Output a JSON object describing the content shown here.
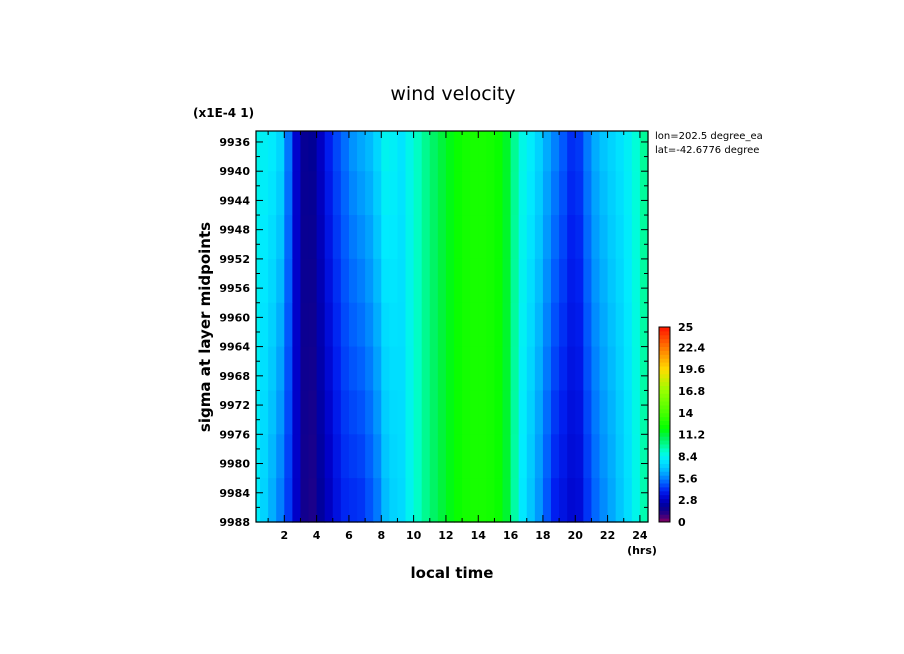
{
  "chart_data": {
    "type": "heatmap",
    "title": "wind velocity",
    "scale_note": "(x1E-4 1)",
    "xlabel": "local time",
    "xunit": "(hrs)",
    "ylabel": "sigma at layer midpoints",
    "x_ticks": [
      "2",
      "4",
      "6",
      "8",
      "10",
      "12",
      "14",
      "16",
      "18",
      "20",
      "22",
      "24"
    ],
    "x_tick_values": [
      2,
      4,
      6,
      8,
      10,
      12,
      14,
      16,
      18,
      20,
      22,
      24
    ],
    "xlim": [
      0.25,
      24.5
    ],
    "y_ticks": [
      "9936",
      "9940",
      "9944",
      "9948",
      "9952",
      "9956",
      "9960",
      "9964",
      "9968",
      "9972",
      "9976",
      "9980",
      "9984",
      "9988"
    ],
    "y_tick_values": [
      9936,
      9940,
      9944,
      9948,
      9952,
      9956,
      9960,
      9964,
      9968,
      9972,
      9976,
      9980,
      9984,
      9988
    ],
    "ylim": [
      9934.5,
      9988
    ],
    "y_inverted": true,
    "info_lines": [
      "lon=202.5 degree_ea",
      "lat=-42.6776 degree"
    ],
    "colorbar": {
      "ticks": [
        "25",
        "22.4",
        "19.6",
        "16.8",
        "14",
        "11.2",
        "8.4",
        "5.6",
        "2.8",
        "0"
      ],
      "tick_values": [
        25,
        22.4,
        19.6,
        16.8,
        14,
        11.2,
        8.4,
        5.6,
        2.8,
        0
      ],
      "range": [
        0,
        25
      ]
    },
    "x": [
      0.25,
      0.5,
      1,
      1.5,
      2,
      2.5,
      3,
      3.5,
      4,
      4.5,
      5,
      5.5,
      6,
      6.5,
      7,
      7.5,
      8,
      8.5,
      9,
      9.5,
      10,
      10.5,
      11,
      11.5,
      12,
      12.5,
      13,
      13.5,
      14,
      14.5,
      15,
      15.5,
      16,
      16.5,
      17,
      17.5,
      18,
      18.5,
      19,
      19.5,
      20,
      20.5,
      21,
      21.5,
      22,
      22.5,
      23,
      23.5,
      24,
      24.5
    ],
    "y": [
      9934.5,
      9940,
      9946,
      9952,
      9958,
      9964,
      9970,
      9976,
      9982,
      9988
    ],
    "values_top": [
      8.6,
      8.4,
      8.2,
      8.0,
      7.0,
      4.0,
      2.2,
      1.6,
      2.4,
      3.5,
      4.5,
      5.0,
      5.8,
      6.3,
      6.6,
      7.0,
      8.0,
      9.0,
      7.5,
      8.2,
      8.9,
      9.6,
      10.3,
      11.0,
      11.5,
      12.0,
      12.5,
      12.6,
      12.7,
      12.6,
      12.5,
      12.0,
      11.0,
      8.8,
      8.5,
      7.8,
      7.0,
      6.0,
      5.5,
      4.6,
      4.0,
      5.0,
      6.2,
      6.8,
      7.2,
      7.6,
      8.0,
      8.5,
      9.5,
      10.2
    ],
    "values_bottom": [
      8.4,
      7.8,
      6.8,
      6.0,
      5.0,
      3.8,
      2.2,
      1.0,
      1.8,
      2.4,
      3.2,
      3.8,
      4.3,
      4.0,
      4.5,
      5.0,
      5.8,
      7.5,
      7.0,
      8.0,
      8.8,
      9.6,
      10.3,
      11.0,
      11.5,
      12.0,
      12.5,
      12.6,
      12.7,
      12.6,
      12.5,
      12.0,
      10.8,
      8.5,
      7.3,
      6.5,
      5.4,
      4.3,
      3.5,
      3.6,
      2.8,
      3.8,
      4.8,
      5.5,
      6.0,
      6.6,
      7.2,
      8.0,
      9.0,
      10.0
    ]
  }
}
